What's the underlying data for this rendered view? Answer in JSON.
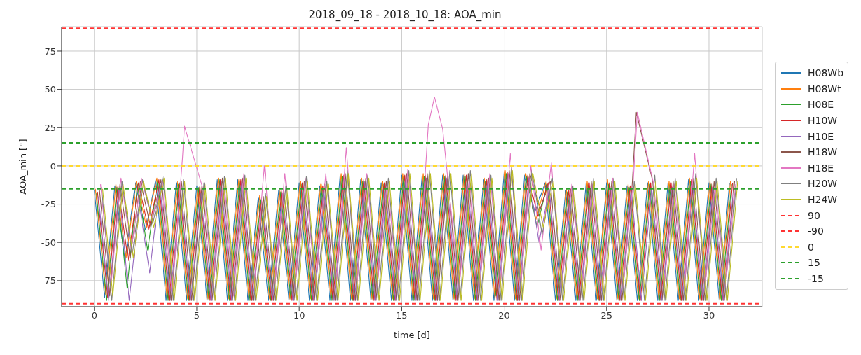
{
  "chart_data": {
    "type": "line",
    "title": "2018_09_18 - 2018_10_18: AOA_min",
    "xlabel": "time [d]",
    "ylabel": "AOA_min [°]",
    "xlim": [
      -1.6,
      32.6
    ],
    "xticks": [
      0,
      5,
      10,
      15,
      20,
      25,
      30
    ],
    "ylim": [
      -92,
      91
    ],
    "yticks": [
      -75,
      -50,
      -25,
      0,
      25,
      50,
      75
    ],
    "grid": true,
    "legend": "right",
    "marker": "none",
    "line_style": "solid",
    "series": [
      {
        "name": "H08Wb",
        "color": "#1f77b4",
        "x": [
          0,
          0.5,
          1,
          1.5,
          2,
          2.5,
          3,
          3.5,
          4,
          4.5,
          5,
          5.5,
          6,
          6.5,
          7,
          7.5,
          8,
          8.5,
          9,
          9.5,
          10,
          10.5,
          11,
          11.5,
          12,
          12.5,
          13,
          13.5,
          14,
          14.5,
          15,
          15.5,
          16,
          16.5,
          17,
          17.5,
          18,
          18.5,
          19,
          19.5,
          20,
          20.5,
          21,
          21.5,
          22,
          22.5,
          23,
          23.5,
          24,
          24.5,
          25,
          25.5,
          26,
          26.5,
          27,
          27.5,
          28,
          28.5,
          29,
          29.5,
          30,
          30.5,
          31
        ],
        "values": [
          -16,
          -86,
          -13,
          -62,
          -11,
          -42,
          -9,
          -88,
          -11,
          -88,
          -13,
          -88,
          -9,
          -88,
          -9,
          -88,
          -21,
          -88,
          -16,
          -88,
          -11,
          -88,
          -13,
          -88,
          -6,
          -88,
          -9,
          -88,
          -11,
          -88,
          -6,
          -88,
          -6,
          -88,
          -6,
          -88,
          -6,
          -88,
          -9,
          -88,
          -4,
          -88,
          -6,
          -30,
          -11,
          -88,
          -16,
          -88,
          -11,
          -88,
          -11,
          -88,
          -13,
          -88,
          -11,
          -88,
          -11,
          -88,
          -9,
          -88,
          -11,
          -88,
          -11
        ]
      },
      {
        "name": "H08Wt",
        "color": "#ff7f0e",
        "x": [
          0.05,
          0.55,
          1.05,
          1.55,
          2.05,
          2.55,
          3.05,
          3.55,
          4.05,
          4.55,
          5.05,
          5.55,
          6.05,
          6.55,
          7.05,
          7.55,
          8.05,
          8.55,
          9.05,
          9.55,
          10.05,
          10.55,
          11.05,
          11.55,
          12.05,
          12.55,
          13.05,
          13.55,
          14.05,
          14.55,
          15.05,
          15.55,
          16.05,
          16.55,
          17.05,
          17.55,
          18.05,
          18.55,
          19.05,
          19.55,
          20.05,
          20.55,
          21.05,
          21.55,
          22.05,
          22.55,
          23.05,
          23.55,
          24.05,
          24.55,
          25.05,
          25.55,
          26.05,
          26.55,
          27.05,
          27.55,
          28.05,
          28.55,
          29.05,
          29.55,
          30.05,
          30.55,
          31.05
        ],
        "values": [
          -15,
          -84,
          -12,
          -60,
          -10,
          -40,
          -8,
          -87,
          -10,
          -87,
          -14,
          -87,
          -8,
          -87,
          -9,
          -87,
          -19,
          -87,
          -15,
          -87,
          -10,
          -87,
          -12,
          -87,
          -5,
          -87,
          -8,
          -87,
          -10,
          -87,
          -5,
          -87,
          -5,
          -87,
          -5,
          -87,
          -5,
          -87,
          -8,
          -87,
          -3,
          -87,
          -5,
          -35,
          -10,
          -87,
          -15,
          -87,
          -10,
          -87,
          -9,
          -87,
          -12,
          -87,
          -10,
          -87,
          -10,
          -87,
          -8,
          -87,
          -10,
          -87,
          -10
        ]
      },
      {
        "name": "H08E",
        "color": "#2ca02c",
        "x": [
          0.1,
          0.6,
          1.1,
          1.6,
          2.1,
          2.6,
          3.1,
          3.6,
          4.1,
          4.6,
          5.1,
          5.6,
          6.1,
          6.6,
          7.1,
          7.6,
          8.1,
          8.6,
          9.1,
          9.6,
          10.1,
          10.6,
          11.1,
          11.6,
          12.1,
          12.6,
          13.1,
          13.6,
          14.1,
          14.6,
          15.1,
          15.6,
          16.1,
          16.6,
          17.1,
          17.6,
          18.1,
          18.6,
          19.1,
          19.6,
          20.1,
          20.6,
          21.1,
          21.6,
          22.1,
          22.6,
          23.1,
          23.6,
          24.1,
          24.6,
          25.1,
          25.6,
          26.1,
          26.6,
          27.1,
          27.6,
          28.1,
          28.6,
          29.1,
          29.6,
          30.1,
          30.6,
          31.1
        ],
        "values": [
          -18,
          -88,
          -14,
          -80,
          -12,
          -55,
          -9,
          -88,
          -12,
          -88,
          -14,
          -88,
          -9,
          -88,
          -10,
          -88,
          -22,
          -88,
          -17,
          -88,
          -12,
          -88,
          -14,
          -88,
          -7,
          -88,
          -10,
          -88,
          -12,
          -88,
          -7,
          -88,
          -7,
          -88,
          -7,
          -88,
          -7,
          -88,
          -10,
          -85,
          -5,
          -88,
          -7,
          -40,
          -12,
          -88,
          -17,
          -88,
          -12,
          -88,
          -12,
          -88,
          -14,
          -88,
          -12,
          -88,
          -12,
          -88,
          -10,
          -88,
          -12,
          -88,
          -12
        ]
      },
      {
        "name": "H10W",
        "color": "#d62728",
        "x": [
          0.15,
          0.65,
          1.15,
          1.65,
          2.15,
          2.65,
          3.15,
          3.65,
          4.15,
          4.65,
          5.15,
          5.65,
          6.15,
          6.65,
          7.15,
          7.65,
          8.15,
          8.65,
          9.15,
          9.65,
          10.15,
          10.65,
          11.15,
          11.65,
          12.15,
          12.65,
          13.15,
          13.65,
          14.15,
          14.65,
          15.15,
          15.65,
          16.15,
          16.65,
          17.15,
          17.65,
          18.15,
          18.65,
          19.15,
          19.65,
          20.15,
          20.65,
          21.15,
          21.65,
          22.15,
          22.65,
          23.15,
          23.65,
          24.15,
          24.65,
          25.15,
          25.65,
          26.15,
          26.65,
          27.15,
          27.65,
          28.15,
          28.65,
          29.15,
          29.65,
          30.15,
          30.65,
          31.15
        ],
        "values": [
          -17,
          -86,
          -13,
          -62,
          -11,
          -42,
          -9,
          -88,
          -11,
          -88,
          -13,
          -88,
          -9,
          -88,
          -9,
          -88,
          -21,
          -88,
          -16,
          -88,
          -11,
          -88,
          -13,
          -88,
          -6,
          -88,
          -9,
          -88,
          -11,
          -88,
          -6,
          -88,
          -6,
          -88,
          -6,
          -88,
          -6,
          -88,
          -9,
          -88,
          -4,
          -88,
          -6,
          -33,
          -11,
          -88,
          -16,
          -88,
          -11,
          -88,
          -11,
          -88,
          -13,
          -88,
          -11,
          -88,
          -11,
          -88,
          -9,
          -88,
          -11,
          -88,
          -11
        ]
      },
      {
        "name": "H10E",
        "color": "#9467bd",
        "x": [
          0.2,
          0.7,
          1.2,
          1.7,
          2.2,
          2.7,
          3.2,
          3.7,
          4.2,
          4.7,
          5.2,
          5.7,
          6.2,
          6.7,
          7.2,
          7.7,
          8.2,
          8.7,
          9.2,
          9.7,
          10.2,
          10.7,
          11.2,
          11.7,
          12.2,
          12.7,
          13.2,
          13.7,
          14.2,
          14.7,
          15.2,
          15.7,
          16.2,
          16.7,
          17.2,
          17.7,
          18.2,
          18.7,
          19.2,
          19.7,
          20.2,
          20.7,
          21.2,
          21.7,
          22.2,
          22.7,
          23.2,
          23.7,
          24.2,
          24.7,
          25.2,
          25.7,
          26.2,
          26.7,
          27.2,
          27.7,
          28.2,
          28.7,
          29.2,
          29.7,
          30.2,
          30.7,
          31.2
        ],
        "values": [
          -20,
          -88,
          -15,
          -88,
          -25,
          -70,
          -12,
          -88,
          -15,
          -88,
          -18,
          -88,
          -10,
          -88,
          -10,
          -88,
          -25,
          -88,
          -18,
          -88,
          -14,
          -88,
          -15,
          -88,
          -8,
          -88,
          -10,
          -88,
          -12,
          -88,
          -8,
          -88,
          -8,
          -88,
          -8,
          -88,
          -8,
          -88,
          -10,
          -88,
          -5,
          -88,
          -8,
          -50,
          -15,
          -88,
          -20,
          -88,
          -15,
          -88,
          -15,
          -88,
          -15,
          -88,
          -14,
          -88,
          -14,
          -88,
          -12,
          -88,
          -14,
          -88,
          -14
        ]
      },
      {
        "name": "H18W",
        "color": "#8c564b",
        "x": [
          0.25,
          0.75,
          1.25,
          1.75,
          2.25,
          2.75,
          3.25,
          3.75,
          4.25,
          4.75,
          5.25,
          5.75,
          6.25,
          6.75,
          7.25,
          7.75,
          8.25,
          8.75,
          9.25,
          9.75,
          10.25,
          10.75,
          11.25,
          11.75,
          12.25,
          12.75,
          13.25,
          13.75,
          14.25,
          14.75,
          15.25,
          15.75,
          16.25,
          16.75,
          17.25,
          17.75,
          18.25,
          18.75,
          19.25,
          19.75,
          20.25,
          20.75,
          21.25,
          21.75,
          22.25,
          22.75,
          23.25,
          23.75,
          24.25,
          24.75,
          25.25,
          25.75,
          26.25,
          26.45,
          27.25,
          27.75,
          28.25,
          28.75,
          29.25,
          29.75,
          30.25,
          30.75,
          31.25
        ],
        "values": [
          -16,
          -85,
          -12,
          -60,
          -10,
          -40,
          -9,
          -88,
          -10,
          -88,
          -13,
          -88,
          -8,
          -88,
          -8,
          -88,
          -20,
          -88,
          -15,
          -88,
          -10,
          -88,
          -12,
          -88,
          -5,
          -88,
          -8,
          -88,
          -10,
          -88,
          -5,
          -88,
          -5,
          -88,
          -5,
          -88,
          -5,
          -88,
          -8,
          -88,
          -3,
          -88,
          -5,
          -28,
          -10,
          -88,
          -15,
          -88,
          -10,
          -88,
          -10,
          -88,
          -12,
          35,
          -10,
          -88,
          -10,
          -88,
          -8,
          -88,
          -10,
          -88,
          -10
        ]
      },
      {
        "name": "H18E",
        "color": "#e377c2",
        "x": [
          0.3,
          0.8,
          1.3,
          1.8,
          2.3,
          2.8,
          3.3,
          3.8,
          4.3,
          4.4,
          5.3,
          5.8,
          6.3,
          6.8,
          7.3,
          7.8,
          8.3,
          8.8,
          9.3,
          9.8,
          10.3,
          10.8,
          11.3,
          11.8,
          12.3,
          12.8,
          13.3,
          13.8,
          14.3,
          14.8,
          15.3,
          15.8,
          16.3,
          16.6,
          17,
          17.8,
          18.3,
          18.8,
          19.3,
          19.8,
          20.3,
          20.8,
          21.3,
          21.8,
          22.3,
          22.8,
          23.3,
          23.8,
          24.3,
          24.8,
          25.3,
          25.8,
          26.3,
          26.5,
          27.3,
          27.8,
          28.3,
          28.8,
          29.3,
          29.8,
          30.3,
          30.8,
          31.3
        ],
        "values": [
          -12,
          -80,
          -8,
          -55,
          -8,
          -35,
          -10,
          -85,
          5,
          26,
          -15,
          -80,
          -10,
          -85,
          -5,
          -80,
          0,
          -80,
          -5,
          -80,
          -8,
          -80,
          -5,
          -80,
          12,
          -80,
          -5,
          -80,
          -10,
          -80,
          -2,
          -80,
          27,
          45,
          24,
          -80,
          -8,
          -80,
          -5,
          -80,
          8,
          -80,
          0,
          -55,
          2,
          -80,
          -12,
          -80,
          -12,
          -80,
          -8,
          -80,
          -10,
          35,
          -12,
          -80,
          -12,
          -80,
          8,
          -80,
          -12,
          -80,
          -12
        ]
      },
      {
        "name": "H20W",
        "color": "#7f7f7f",
        "x": [
          0.35,
          0.85,
          1.35,
          1.85,
          2.35,
          2.85,
          3.35,
          3.85,
          4.35,
          4.85,
          5.35,
          5.85,
          6.35,
          6.85,
          7.35,
          7.85,
          8.35,
          8.85,
          9.35,
          9.85,
          10.35,
          10.85,
          11.35,
          11.85,
          12.35,
          12.85,
          13.35,
          13.85,
          14.35,
          14.85,
          15.35,
          15.85,
          16.35,
          16.85,
          17.35,
          17.85,
          18.35,
          18.85,
          19.35,
          19.85,
          20.35,
          20.85,
          21.35,
          21.85,
          22.35,
          22.85,
          23.35,
          23.85,
          24.35,
          24.85,
          25.35,
          25.85,
          26.35,
          26.85,
          27.35,
          27.85,
          28.35,
          28.85,
          29.35,
          29.85,
          30.35,
          30.85,
          31.35
        ],
        "values": [
          -14,
          -88,
          -10,
          -58,
          -9,
          -38,
          -7,
          -88,
          -9,
          -88,
          -11,
          -88,
          -7,
          -88,
          -6,
          -88,
          -18,
          -88,
          -13,
          -88,
          -7,
          -88,
          -10,
          -88,
          -3,
          -88,
          -6,
          -88,
          -8,
          -88,
          -3,
          -88,
          -3,
          -88,
          -3,
          -88,
          -3,
          -88,
          -6,
          -88,
          -1,
          -88,
          -3,
          -45,
          -8,
          -88,
          -13,
          -88,
          -8,
          -88,
          -8,
          -88,
          -10,
          -88,
          -6,
          -88,
          -8,
          -88,
          -5,
          -88,
          -8,
          -88,
          -8
        ]
      },
      {
        "name": "H24W",
        "color": "#bcbd22",
        "x": [
          0.4,
          0.9,
          1.4,
          1.9,
          2.4,
          2.9,
          3.4,
          3.9,
          4.4,
          4.9,
          5.4,
          5.9,
          6.4,
          6.9,
          7.4,
          7.9,
          8.4,
          8.9,
          9.4,
          9.9,
          10.4,
          10.9,
          11.4,
          11.9,
          12.4,
          12.9,
          13.4,
          13.9,
          14.4,
          14.9,
          15.4,
          15.9,
          16.4,
          16.9,
          17.4,
          17.9,
          18.4,
          18.9,
          19.4,
          19.9,
          20.4,
          20.9,
          21.4,
          21.9,
          22.4,
          22.9,
          23.4,
          23.9,
          24.4,
          24.9,
          25.4,
          25.9,
          26.4,
          26.9,
          27.4,
          27.9,
          28.4,
          28.9,
          29.4,
          29.9,
          30.4,
          30.9,
          31.4
        ],
        "values": [
          -15,
          -85,
          -12,
          -60,
          -10,
          -40,
          -8,
          -88,
          -10,
          -88,
          -12,
          -88,
          -8,
          -88,
          -8,
          -88,
          -20,
          -88,
          -15,
          -88,
          -10,
          -88,
          -12,
          -88,
          -5,
          -88,
          -8,
          -88,
          -10,
          -88,
          -5,
          -88,
          -5,
          -88,
          -5,
          -88,
          -5,
          -88,
          -8,
          -88,
          -3,
          -88,
          -5,
          -40,
          -10,
          -88,
          -15,
          -88,
          -10,
          -88,
          -10,
          -88,
          -12,
          -88,
          -10,
          -88,
          -10,
          -88,
          -8,
          -88,
          -10,
          -88,
          -10
        ]
      }
    ],
    "ref_lines": [
      {
        "axis": "y",
        "value": 90,
        "label": "90",
        "color": "#ff3333",
        "line_style": "dashed"
      },
      {
        "axis": "y",
        "value": -90,
        "label": "-90",
        "color": "#ff3333",
        "line_style": "dashed"
      },
      {
        "axis": "y",
        "value": 0,
        "label": "0",
        "color": "#ffd92f",
        "line_style": "dashed"
      },
      {
        "axis": "y",
        "value": 15,
        "label": "15",
        "color": "#2ca02c",
        "line_style": "dashed"
      },
      {
        "axis": "y",
        "value": -15,
        "label": "-15",
        "color": "#2ca02c",
        "line_style": "dashed"
      }
    ]
  }
}
